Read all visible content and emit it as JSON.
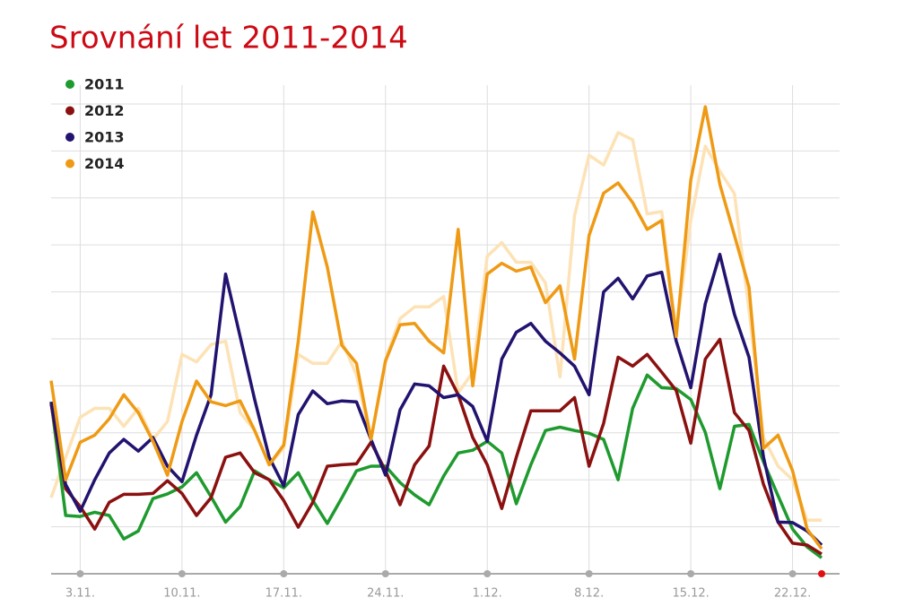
{
  "chart_data": {
    "type": "line",
    "title": "Srovnání let 2011-2014",
    "categories": [
      null,
      null,
      "3.11.",
      null,
      null,
      null,
      null,
      null,
      null,
      "10.11.",
      null,
      null,
      null,
      null,
      null,
      null,
      "17.11.",
      null,
      null,
      null,
      null,
      null,
      null,
      "24.11.",
      null,
      null,
      null,
      null,
      null,
      null,
      "1.12.",
      null,
      null,
      null,
      null,
      null,
      null,
      "8.12.",
      null,
      null,
      null,
      null,
      null,
      null,
      "15.12.",
      null,
      null,
      null,
      null,
      null,
      null,
      "22.12.",
      null,
      null
    ],
    "ylim": [
      0,
      10.4
    ],
    "yticks": [
      0,
      1,
      2,
      3,
      4,
      5,
      6,
      7,
      8,
      9,
      10
    ],
    "grid": true,
    "legend": "top-left",
    "series": [
      {
        "color": "#fde2b6",
        "values": [
          1.62,
          2.48,
          3.33,
          3.52,
          3.52,
          3.14,
          3.52,
          2.86,
          3.24,
          4.67,
          4.51,
          4.88,
          4.95,
          3.43,
          3.05,
          2.32,
          2.67,
          4.67,
          4.48,
          4.48,
          4.95,
          4.23,
          2.86,
          4.57,
          5.43,
          5.68,
          5.68,
          5.9,
          3.85,
          4.29,
          6.76,
          7.05,
          6.63,
          6.63,
          6.19,
          4.19,
          7.62,
          8.91,
          8.7,
          9.39,
          9.24,
          7.66,
          7.71,
          5.14,
          7.52,
          9.1,
          8.57,
          8.09,
          5.62,
          2.9,
          2.29,
          2.0,
          1.14,
          1.14
        ]
      },
      {
        "name": "2011",
        "color": "#1e9a2e",
        "values": [
          3.66,
          1.24,
          1.22,
          1.31,
          1.24,
          0.74,
          0.91,
          1.6,
          1.7,
          1.85,
          2.15,
          1.64,
          1.1,
          1.43,
          2.19,
          2.0,
          1.83,
          2.15,
          1.56,
          1.07,
          1.62,
          2.19,
          2.29,
          2.29,
          1.94,
          1.68,
          1.47,
          2.08,
          2.57,
          2.63,
          2.82,
          2.57,
          1.49,
          2.32,
          3.05,
          3.12,
          3.05,
          2.99,
          2.86,
          2.0,
          3.52,
          4.23,
          3.96,
          3.94,
          3.71,
          3.01,
          1.81,
          3.14,
          3.18,
          2.38,
          1.66,
          0.95,
          0.57,
          0.34
        ]
      },
      {
        "name": "2012",
        "color": "#8b1010",
        "values": [
          3.62,
          1.81,
          1.43,
          0.95,
          1.52,
          1.69,
          1.69,
          1.71,
          1.98,
          1.71,
          1.24,
          1.62,
          2.48,
          2.57,
          2.15,
          2.0,
          1.56,
          0.99,
          1.52,
          2.29,
          2.32,
          2.34,
          2.8,
          2.19,
          1.47,
          2.32,
          2.72,
          4.42,
          3.81,
          2.9,
          2.32,
          1.39,
          2.48,
          3.47,
          3.47,
          3.47,
          3.75,
          2.29,
          3.2,
          4.61,
          4.42,
          4.67,
          4.29,
          3.9,
          2.78,
          4.57,
          4.99,
          3.43,
          3.05,
          1.9,
          1.1,
          0.65,
          0.61,
          0.42
        ]
      },
      {
        "name": "2013",
        "color": "#21136f",
        "values": [
          3.66,
          1.9,
          1.33,
          2.0,
          2.57,
          2.86,
          2.61,
          2.9,
          2.29,
          1.96,
          2.95,
          3.81,
          6.38,
          5.05,
          3.71,
          2.48,
          1.87,
          3.39,
          3.89,
          3.62,
          3.68,
          3.66,
          2.86,
          2.1,
          3.49,
          4.04,
          4.0,
          3.75,
          3.81,
          3.56,
          2.82,
          4.57,
          5.14,
          5.33,
          4.95,
          4.7,
          4.42,
          3.81,
          6.0,
          6.29,
          5.85,
          6.34,
          6.42,
          4.95,
          3.96,
          5.75,
          6.8,
          5.52,
          4.61,
          2.48,
          1.1,
          1.09,
          0.91,
          0.61
        ]
      },
      {
        "name": "2014",
        "color": "#ef9a14",
        "values": [
          4.11,
          2.0,
          2.8,
          2.95,
          3.3,
          3.81,
          3.43,
          2.82,
          2.1,
          3.24,
          4.1,
          3.66,
          3.58,
          3.68,
          3.05,
          2.32,
          2.74,
          4.95,
          7.7,
          6.53,
          4.86,
          4.48,
          2.86,
          4.53,
          5.3,
          5.33,
          4.95,
          4.7,
          7.33,
          4.0,
          6.38,
          6.61,
          6.44,
          6.53,
          5.77,
          6.13,
          4.57,
          7.2,
          8.1,
          8.32,
          7.9,
          7.33,
          7.52,
          5.05,
          8.38,
          9.94,
          8.29,
          7.2,
          6.1,
          2.67,
          2.95,
          2.19,
          0.95,
          0.53
        ]
      }
    ]
  }
}
